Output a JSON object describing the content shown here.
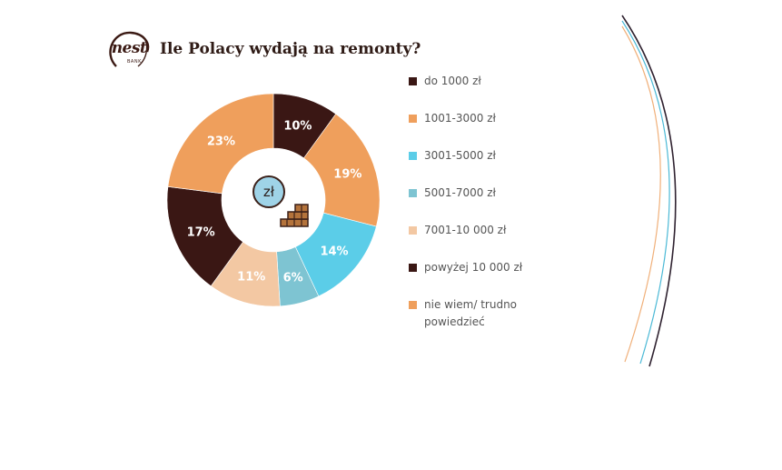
{
  "logo": {
    "brand": "nest",
    "sub": "BANK"
  },
  "center_icon": {
    "symbol": "zł"
  },
  "chart_data": {
    "type": "pie",
    "title": "Ile Polacy wydają na remonty?",
    "variant": "donut",
    "legend_position": "right",
    "slices": [
      {
        "label": "do 1000 zł",
        "value": 10,
        "display": "10%",
        "color": "#3a1714",
        "text_color": "#ffffff"
      },
      {
        "label": "1001-3000 zł",
        "value": 19,
        "display": "19%",
        "color": "#ef9f5c",
        "text_color": "#ffffff"
      },
      {
        "label": "3001-5000 zł",
        "value": 14,
        "display": "14%",
        "color": "#5bcde8",
        "text_color": "#ffffff"
      },
      {
        "label": "5001-7000 zł",
        "value": 6,
        "display": "6%",
        "color": "#7ec4d2",
        "text_color": "#ffffff"
      },
      {
        "label": "7001-10 000 zł",
        "value": 11,
        "display": "11%",
        "color": "#f3c8a3",
        "text_color": "#ffffff"
      },
      {
        "label": "powyżej 10 000 zł",
        "value": 17,
        "display": "17%",
        "color": "#3a1714",
        "text_color": "#ffffff"
      },
      {
        "label": "nie wiem/ trudno powiedzieć",
        "value": 23,
        "display": "23%",
        "color": "#ef9f5c",
        "text_color": "#ffffff"
      }
    ]
  },
  "colors": {
    "dark_brown": "#3a1714",
    "orange": "#ef9f5c",
    "cyan": "#5bcde8",
    "teal": "#7ec4d2",
    "peach": "#f3c8a3",
    "arc_dark": "#2f2230",
    "arc_cyan": "#4bb9d6",
    "arc_orange": "#f0b07a"
  }
}
